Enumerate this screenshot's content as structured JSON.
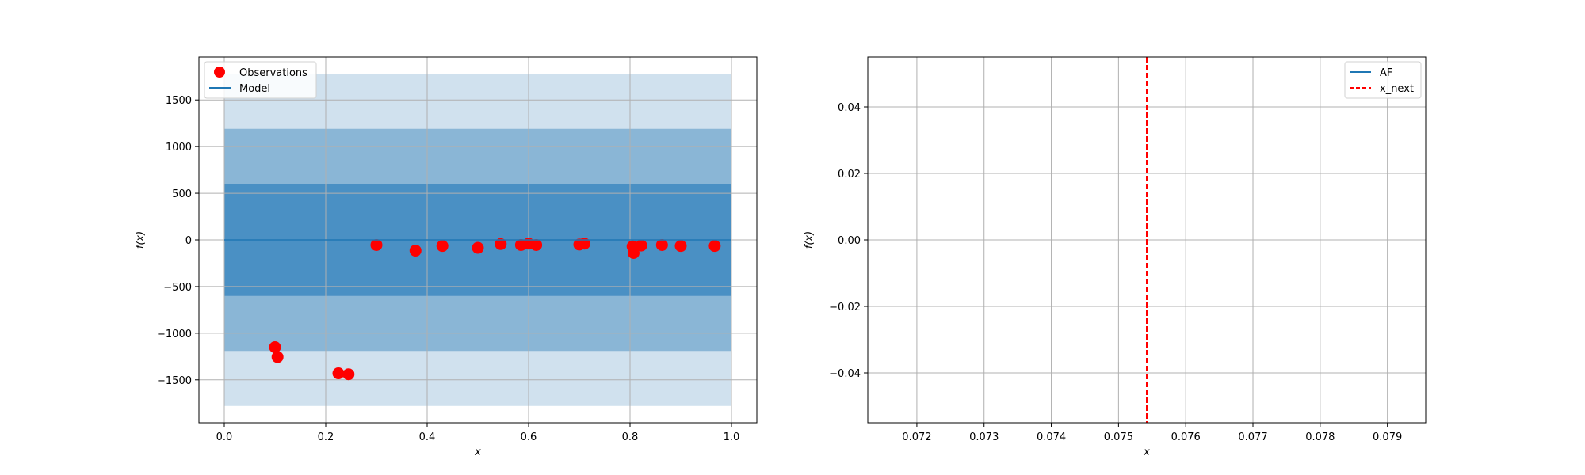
{
  "chart_data": [
    {
      "type": "scatter",
      "title": "",
      "xlabel": "x",
      "ylabel": "f(x)",
      "xlim": [
        -0.05,
        1.05
      ],
      "ylim": [
        -1960,
        1960
      ],
      "grid": true,
      "legend_placement": "top-left",
      "x_ticks": [
        0.0,
        0.2,
        0.4,
        0.6,
        0.8,
        1.0
      ],
      "x_tick_labels": [
        "0.0",
        "0.2",
        "0.4",
        "0.6",
        "0.8",
        "1.0"
      ],
      "y_ticks": [
        1500,
        1000,
        500,
        0,
        -500,
        -1000,
        -1500
      ],
      "y_tick_labels": [
        "1500",
        "1000",
        "500",
        "0",
        "−500",
        "−1000",
        "−1500"
      ],
      "bands": [
        {
          "lower": -1780,
          "upper": 1780,
          "color": "#d0e1ee"
        },
        {
          "lower": -1190,
          "upper": 1190,
          "color": "#8ab6d6"
        },
        {
          "lower": -600,
          "upper": 600,
          "color": "#4a90c4"
        }
      ],
      "band_x_range": [
        0.0,
        1.0
      ],
      "series": [
        {
          "name": "Observations",
          "kind": "scatter",
          "color": "#ff0000",
          "x": [
            0.1,
            0.105,
            0.225,
            0.245,
            0.3,
            0.377,
            0.43,
            0.5,
            0.545,
            0.585,
            0.6,
            0.615,
            0.7,
            0.71,
            0.805,
            0.807,
            0.822,
            0.863,
            0.9,
            0.967
          ],
          "y": [
            -1150,
            -1255,
            -1430,
            -1440,
            -55,
            -115,
            -65,
            -85,
            -45,
            -55,
            -40,
            -55,
            -50,
            -40,
            -70,
            -140,
            -60,
            -55,
            -65,
            -65
          ]
        },
        {
          "name": "Model",
          "kind": "line",
          "color": "#1f77b4",
          "x": [
            0.0,
            1.0
          ],
          "y": [
            0,
            0
          ]
        }
      ]
    },
    {
      "type": "line",
      "title": "",
      "xlabel": "x",
      "ylabel": "f(x)",
      "xlim": [
        0.07127,
        0.07957
      ],
      "ylim": [
        -0.055,
        0.055
      ],
      "grid": true,
      "legend_placement": "top-right",
      "x_ticks": [
        0.072,
        0.073,
        0.074,
        0.075,
        0.076,
        0.077,
        0.078,
        0.079
      ],
      "x_tick_labels": [
        "0.072",
        "0.073",
        "0.074",
        "0.075",
        "0.076",
        "0.077",
        "0.078",
        "0.079"
      ],
      "y_ticks": [
        0.04,
        0.02,
        0.0,
        -0.02,
        -0.04
      ],
      "y_tick_labels": [
        "0.04",
        "0.02",
        "0.00",
        "−0.02",
        "−0.04"
      ],
      "series": [
        {
          "name": "AF",
          "kind": "line",
          "color": "#1f77b4",
          "x": [],
          "y": []
        },
        {
          "name": "x_next",
          "kind": "vline",
          "color": "#ff0000",
          "dashed": true,
          "x": [
            0.07542
          ]
        }
      ]
    }
  ]
}
